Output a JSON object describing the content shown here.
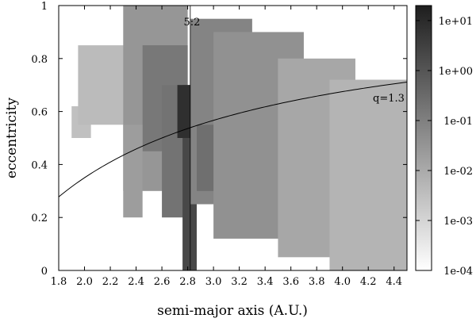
{
  "chart_data": {
    "type": "heatmap",
    "title": "",
    "xlabel": "semi-major axis (A.U.)",
    "ylabel": "eccentricity",
    "xlim": [
      1.8,
      4.5
    ],
    "ylim": [
      0,
      1
    ],
    "x_ticks": [
      "1.8",
      "2.0",
      "2.2",
      "2.4",
      "2.6",
      "2.8",
      "3.0",
      "3.2",
      "3.4",
      "3.6",
      "3.8",
      "4.0",
      "4.2",
      "4.4"
    ],
    "y_ticks": [
      "0",
      "0.2",
      "0.4",
      "0.6",
      "0.8",
      "1"
    ],
    "colorbar": {
      "scale": "log",
      "range": [
        0.0001,
        20
      ],
      "ticks": [
        "1e+01",
        "1e+00",
        "1e-01",
        "1e-02",
        "1e-03",
        "1e-04"
      ],
      "low_color": "#ffffff",
      "high_color": "#1e1e1e"
    },
    "annotations": [
      {
        "text": "5:2",
        "x": 2.82,
        "y": 0.96
      },
      {
        "text": "q=1.3",
        "x": 4.25,
        "y": 0.65
      }
    ],
    "resonance_line": {
      "label": "5:2",
      "a": 2.82
    },
    "perihelion_curve": {
      "label": "q=1.3",
      "q": 1.3,
      "formula": "e = 1 - q/a"
    },
    "density_regions": [
      {
        "a_min": 1.9,
        "a_max": 2.05,
        "e_min": 0.5,
        "e_max": 0.62,
        "density": 0.003
      },
      {
        "a_min": 1.95,
        "a_max": 2.45,
        "e_min": 0.55,
        "e_max": 0.85,
        "density": 0.004
      },
      {
        "a_min": 2.3,
        "a_max": 2.8,
        "e_min": 0.3,
        "e_max": 1.0,
        "density": 0.03
      },
      {
        "a_min": 2.45,
        "a_max": 2.8,
        "e_min": 0.45,
        "e_max": 0.85,
        "density": 0.15
      },
      {
        "a_min": 2.6,
        "a_max": 2.78,
        "e_min": 0.2,
        "e_max": 0.7,
        "density": 0.2
      },
      {
        "a_min": 2.76,
        "a_max": 2.87,
        "e_min": 0.0,
        "e_max": 0.7,
        "density": 2.0
      },
      {
        "a_min": 2.72,
        "a_max": 2.92,
        "e_min": 0.5,
        "e_max": 0.7,
        "density": 8.0
      },
      {
        "a_min": 2.82,
        "a_max": 3.3,
        "e_min": 0.25,
        "e_max": 0.95,
        "density": 0.08
      },
      {
        "a_min": 2.87,
        "a_max": 3.1,
        "e_min": 0.3,
        "e_max": 0.55,
        "density": 0.25
      },
      {
        "a_min": 3.0,
        "a_max": 3.7,
        "e_min": 0.12,
        "e_max": 0.9,
        "density": 0.04
      },
      {
        "a_min": 3.5,
        "a_max": 4.1,
        "e_min": 0.05,
        "e_max": 0.8,
        "density": 0.012
      },
      {
        "a_min": 3.9,
        "a_max": 4.5,
        "e_min": 0.0,
        "e_max": 0.72,
        "density": 0.006
      },
      {
        "a_min": 2.3,
        "a_max": 2.45,
        "e_min": 0.2,
        "e_max": 0.55,
        "density": 0.02
      }
    ]
  }
}
